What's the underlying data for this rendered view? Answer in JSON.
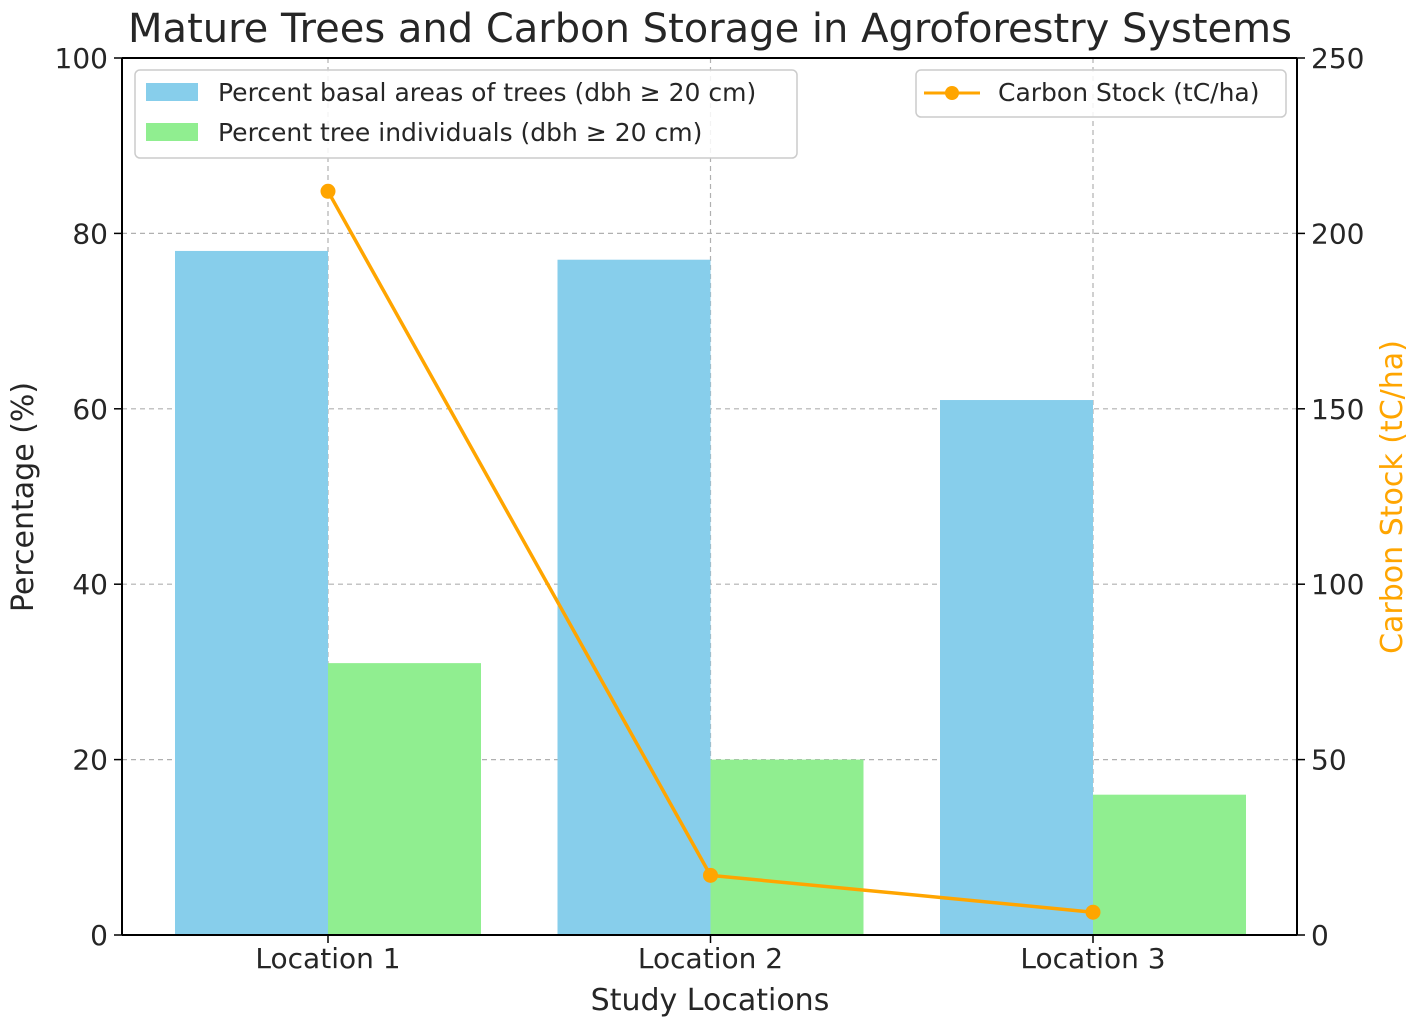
{
  "chart_data": {
    "type": "bar",
    "title": "Mature Trees and Carbon Storage in Agroforestry Systems",
    "xlabel": "Study Locations",
    "ylabel": "Percentage (%)",
    "y2label": "Carbon Stock (tC/ha)",
    "categories": [
      "Location 1",
      "Location 2",
      "Location 3"
    ],
    "ylim": [
      0,
      100
    ],
    "y2lim": [
      0,
      250
    ],
    "yticks": [
      "0",
      "20",
      "40",
      "60",
      "80",
      "100"
    ],
    "y2ticks": [
      "0",
      "50",
      "100",
      "150",
      "200",
      "250"
    ],
    "grid": true,
    "series": [
      {
        "name": "Percent basal areas of trees (dbh ≥ 20 cm)",
        "type": "bar",
        "axis": "left",
        "color": "#87CEEB",
        "values": [
          78,
          77,
          61
        ]
      },
      {
        "name": "Percent tree individuals (dbh ≥ 20 cm)",
        "type": "bar",
        "axis": "left",
        "color": "#90EE90",
        "values": [
          31,
          20,
          16
        ]
      },
      {
        "name": "Carbon Stock (tC/ha)",
        "type": "line",
        "axis": "right",
        "color": "#FFA500",
        "values": [
          212,
          17,
          6.5
        ]
      }
    ],
    "legend_left_placement": "top-left",
    "legend_right_placement": "top-right"
  }
}
